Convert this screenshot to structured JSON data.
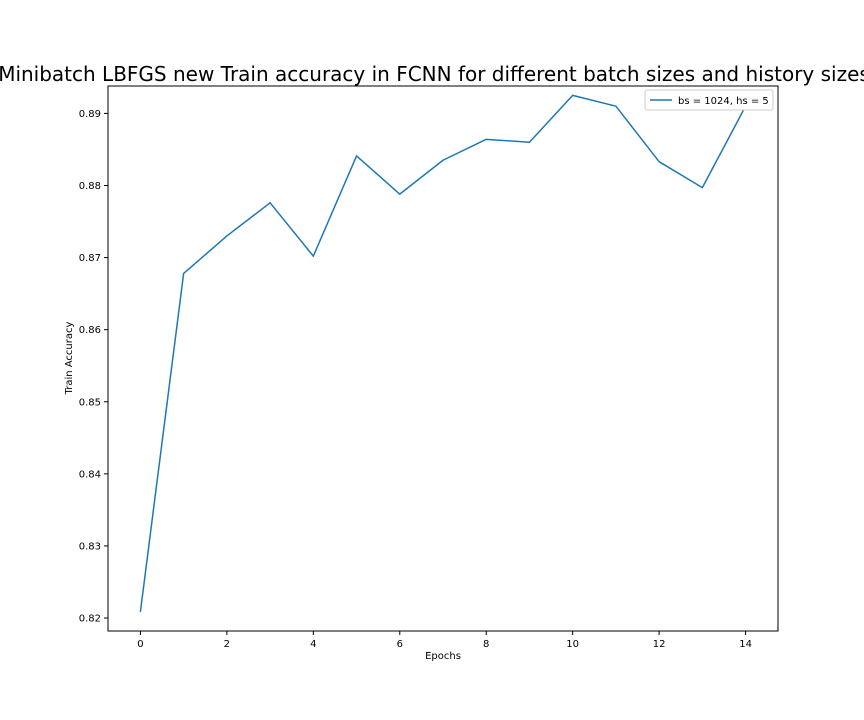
{
  "chart_data": {
    "type": "line",
    "title": "Minibatch LBFGS new Train accuracy in FCNN for different batch sizes and history sizes",
    "xlabel": "Epochs",
    "ylabel": "Train Accuracy",
    "xlim": [
      -0.75,
      14.75
    ],
    "ylim": [
      0.8182,
      0.8938
    ],
    "xticks": [
      0,
      2,
      4,
      6,
      8,
      10,
      12,
      14
    ],
    "yticks": [
      0.82,
      0.83,
      0.84,
      0.85,
      0.86,
      0.87,
      0.88,
      0.89
    ],
    "ytick_labels": [
      "0.82",
      "0.83",
      "0.84",
      "0.85",
      "0.86",
      "0.87",
      "0.88",
      "0.89"
    ],
    "grid": false,
    "legend_position": "top-right",
    "series": [
      {
        "name": "bs = 1024, hs = 5",
        "color": "#1f77b4",
        "x": [
          0,
          1,
          2,
          3,
          4,
          5,
          6,
          7,
          8,
          9,
          10,
          11,
          12,
          13,
          14
        ],
        "values": [
          0.8209,
          0.8678,
          0.873,
          0.8776,
          0.8702,
          0.8841,
          0.8788,
          0.8835,
          0.8864,
          0.886,
          0.8925,
          0.891,
          0.8833,
          0.8797,
          0.891
        ]
      }
    ]
  }
}
